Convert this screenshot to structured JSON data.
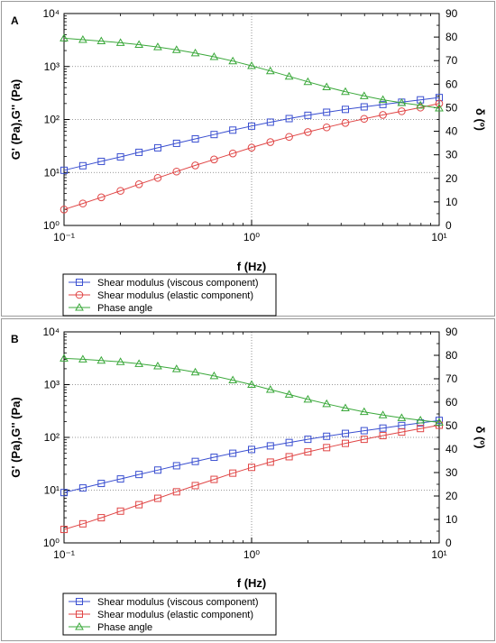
{
  "chart_data": [
    {
      "panel_label": "A",
      "type": "line",
      "x_scale": "log",
      "y_scale": "log",
      "xlabel": "f (Hz)",
      "ylabel": "G' (Pa),G'' (Pa)",
      "y2label": "δ (º)",
      "xlim": [
        0.1,
        10
      ],
      "ylim": [
        1,
        10000
      ],
      "y2lim": [
        0,
        90
      ],
      "x_ticks": [
        "10⁻¹",
        "10⁰",
        "10¹"
      ],
      "y_ticks": [
        "10⁰",
        "10¹",
        "10²",
        "10³",
        "10⁴"
      ],
      "y2_ticks": [
        "0",
        "10",
        "20",
        "30",
        "40",
        "50",
        "60",
        "70",
        "80",
        "90"
      ],
      "grid": "dotted at decades",
      "legend_position": "below plot",
      "x": [
        0.1,
        0.126,
        0.158,
        0.2,
        0.251,
        0.316,
        0.398,
        0.501,
        0.631,
        0.794,
        1.0,
        1.259,
        1.585,
        1.995,
        2.512,
        3.162,
        3.981,
        5.012,
        6.31,
        7.943,
        10.0
      ],
      "series": [
        {
          "name": "Shear modulus (viscous component)",
          "axis": "left",
          "color": "#3a4fd0",
          "marker": "square",
          "values": [
            11,
            13.4,
            16.2,
            19.7,
            24,
            29.2,
            35.5,
            43,
            52,
            63,
            75,
            89,
            104,
            120,
            137,
            155,
            173,
            192,
            212,
            235,
            260
          ]
        },
        {
          "name": "Shear modulus (elastic component)",
          "axis": "left",
          "color": "#e04545",
          "marker": "circle",
          "values": [
            2,
            2.6,
            3.4,
            4.5,
            6,
            7.9,
            10.4,
            13.6,
            17.6,
            22.8,
            29.5,
            37.5,
            47,
            58,
            71,
            86,
            103,
            122,
            143,
            168,
            200
          ]
        },
        {
          "name": "Phase angle",
          "axis": "right",
          "color": "#3aa83a",
          "marker": "triangle",
          "values": [
            79.5,
            78.9,
            78.3,
            77.6,
            76.8,
            75.8,
            74.6,
            73.2,
            71.6,
            69.8,
            67.8,
            65.6,
            63.3,
            61,
            58.8,
            56.8,
            55,
            53.4,
            52.1,
            51,
            49.8
          ]
        }
      ]
    },
    {
      "panel_label": "B",
      "type": "line",
      "x_scale": "log",
      "y_scale": "log",
      "xlabel": "f (Hz)",
      "ylabel": "G' (Pa),G'' (Pa)",
      "y2label": "δ (º)",
      "xlim": [
        0.1,
        10
      ],
      "ylim": [
        1,
        10000
      ],
      "y2lim": [
        0,
        90
      ],
      "x_ticks": [
        "10⁻¹",
        "10⁰",
        "10¹"
      ],
      "y_ticks": [
        "10⁰",
        "10¹",
        "10²",
        "10³",
        "10⁴"
      ],
      "y2_ticks": [
        "0",
        "10",
        "20",
        "30",
        "40",
        "50",
        "60",
        "70",
        "80",
        "90"
      ],
      "grid": "dotted at decades",
      "legend_position": "below plot",
      "x": [
        0.1,
        0.126,
        0.158,
        0.2,
        0.251,
        0.316,
        0.398,
        0.501,
        0.631,
        0.794,
        1.0,
        1.259,
        1.585,
        1.995,
        2.512,
        3.162,
        3.981,
        5.012,
        6.31,
        7.943,
        10.0
      ],
      "series": [
        {
          "name": "Shear modulus (viscous component)",
          "axis": "left",
          "color": "#3a4fd0",
          "marker": "square",
          "values": [
            9,
            11,
            13.4,
            16.3,
            19.8,
            24,
            29,
            35,
            42,
            50,
            59,
            69,
            80,
            92,
            105,
            119,
            134,
            150,
            168,
            188,
            210
          ]
        },
        {
          "name": "Shear modulus (elastic component)",
          "axis": "left",
          "color": "#e04545",
          "marker": "square",
          "values": [
            1.8,
            2.3,
            3,
            4,
            5.3,
            7,
            9.3,
            12.2,
            16,
            21,
            27,
            34,
            43,
            53,
            64,
            77,
            92,
            108,
            126,
            147,
            170
          ]
        },
        {
          "name": "Phase angle",
          "axis": "right",
          "color": "#3aa83a",
          "marker": "triangle",
          "values": [
            78.7,
            78.3,
            77.8,
            77.2,
            76.4,
            75.4,
            74.2,
            72.8,
            71.2,
            69.4,
            67.5,
            65.4,
            63.3,
            61.2,
            59.3,
            57.5,
            55.9,
            54.5,
            53.3,
            52.3,
            51.4
          ]
        }
      ]
    }
  ]
}
